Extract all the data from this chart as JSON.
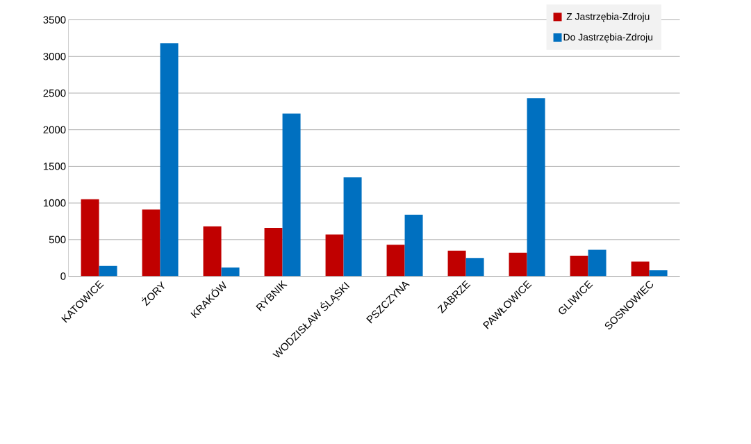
{
  "chart_data": {
    "type": "bar",
    "categories": [
      "KATOWICE",
      "ŻORY",
      "KRAKÓW",
      "RYBNIK",
      "WODZISŁAW ŚLĄSKI",
      "PSZCZYNA",
      "ZABRZE",
      "PAWŁOWICE",
      "GLIWICE",
      "SOSNOWIEC"
    ],
    "series": [
      {
        "name": "Z Jastrzębia-Zdroju",
        "color": "#c00000",
        "values": [
          1050,
          910,
          680,
          660,
          570,
          430,
          350,
          320,
          280,
          200
        ]
      },
      {
        "name": "Do Jastrzębia-Zdroju",
        "color": "#0070c0",
        "values": [
          140,
          3180,
          120,
          2220,
          1350,
          840,
          250,
          2430,
          360,
          80
        ]
      }
    ],
    "ylim": [
      0,
      3500
    ],
    "yticks": [
      0,
      500,
      1000,
      1500,
      2000,
      2500,
      3000,
      3500
    ],
    "grid": "y",
    "legend": "top right"
  }
}
